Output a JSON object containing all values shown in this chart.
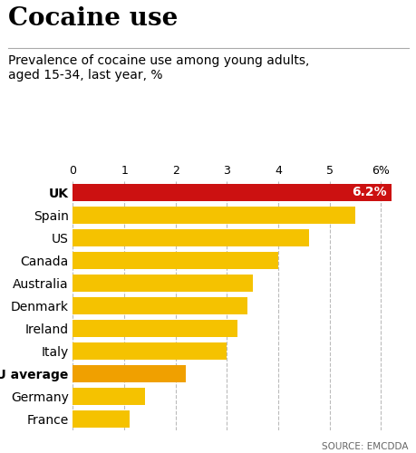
{
  "title": "Cocaine use",
  "subtitle": "Prevalence of cocaine use among young adults,\naged 15-34, last year, %",
  "source": "SOURCE: EMCDDA",
  "categories": [
    "UK",
    "Spain",
    "US",
    "Canada",
    "Australia",
    "Denmark",
    "Ireland",
    "Italy",
    "EU average",
    "Germany",
    "France"
  ],
  "values": [
    6.2,
    5.5,
    4.6,
    4.0,
    3.5,
    3.4,
    3.2,
    3.0,
    2.2,
    1.4,
    1.1
  ],
  "bar_colors": [
    "#cc1111",
    "#f5c200",
    "#f5c200",
    "#f5c200",
    "#f5c200",
    "#f5c200",
    "#f5c200",
    "#f5c200",
    "#f0a000",
    "#f5c200",
    "#f5c200"
  ],
  "label_bold": [
    true,
    false,
    false,
    false,
    false,
    false,
    false,
    false,
    true,
    false,
    false
  ],
  "label_color": [
    "#ffffff",
    "#000000",
    "#000000",
    "#000000",
    "#000000",
    "#000000",
    "#000000",
    "#000000",
    "#000000",
    "#000000",
    "#000000"
  ],
  "uk_label": "6.2%",
  "xlim": [
    0,
    6.5
  ],
  "xticks": [
    0,
    1,
    2,
    3,
    4,
    5,
    6
  ],
  "xtick_labels": [
    "0",
    "1",
    "2",
    "3",
    "4",
    "5",
    "6%"
  ],
  "background_color": "#ffffff",
  "bar_height": 0.75,
  "title_fontsize": 20,
  "subtitle_fontsize": 10,
  "tick_fontsize": 9,
  "label_fontsize": 10
}
